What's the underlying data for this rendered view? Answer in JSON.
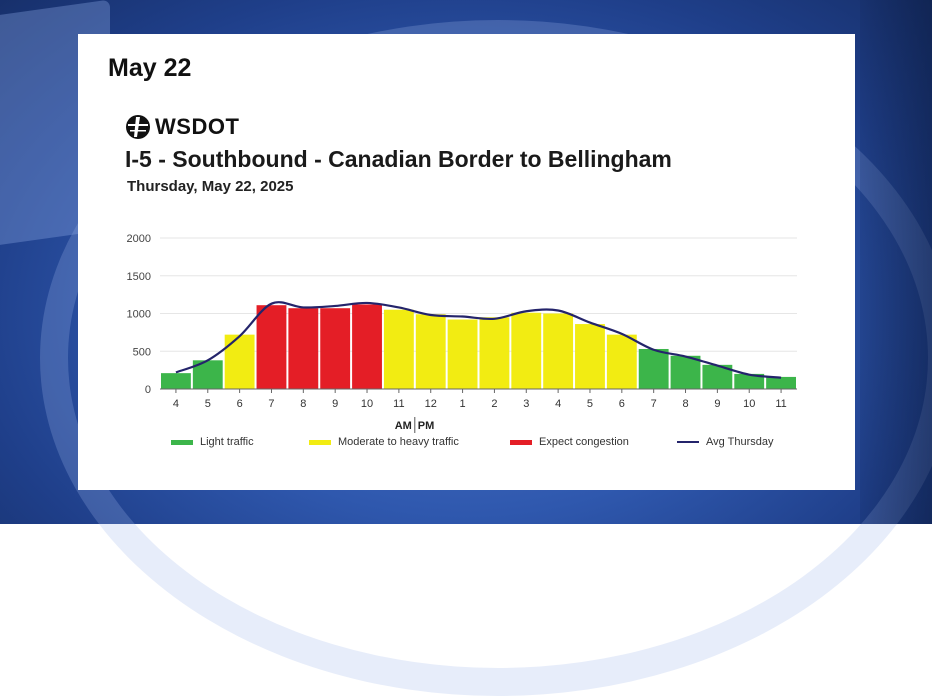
{
  "page": {
    "date_heading": "May 22",
    "logo_text": "WSDOT"
  },
  "colors": {
    "light": "#3cb54a",
    "moderate": "#f2ec12",
    "congestion": "#e41e26",
    "avg_line": "#24246b"
  },
  "chart_data": {
    "type": "bar",
    "title": "I-5 - Southbound - Canadian Border to Bellingham",
    "subtitle": "Thursday, May 22, 2025",
    "ylim": [
      0,
      2000
    ],
    "yticks": [
      "0",
      "500",
      "1000",
      "1500",
      "2000"
    ],
    "categories": [
      "4",
      "5",
      "6",
      "7",
      "8",
      "9",
      "10",
      "11",
      "12",
      "1",
      "2",
      "3",
      "4",
      "5",
      "6",
      "7",
      "8",
      "9",
      "10",
      "11"
    ],
    "axis_note": [
      "AM",
      "PM"
    ],
    "grid": true,
    "series": [
      {
        "values": [
          210,
          380,
          720,
          1110,
          1070,
          1070,
          1120,
          1050,
          990,
          920,
          950,
          1010,
          1000,
          860,
          720,
          530,
          440,
          320,
          200,
          160
        ],
        "levels": [
          "light",
          "light",
          "moderate",
          "congestion",
          "congestion",
          "congestion",
          "congestion",
          "moderate",
          "moderate",
          "moderate",
          "moderate",
          "moderate",
          "moderate",
          "moderate",
          "moderate",
          "light",
          "light",
          "light",
          "light",
          "light"
        ]
      },
      {
        "name": "Avg Thursday",
        "type": "line",
        "values": [
          220,
          380,
          700,
          1130,
          1080,
          1100,
          1140,
          1080,
          980,
          960,
          930,
          1030,
          1040,
          880,
          730,
          520,
          430,
          310,
          190,
          150
        ]
      }
    ],
    "legend": [
      {
        "label": "Light traffic",
        "key": "light"
      },
      {
        "label": "Moderate to heavy traffic",
        "key": "moderate"
      },
      {
        "label": "Expect congestion",
        "key": "congestion"
      },
      {
        "label": "Avg Thursday",
        "key": "avg_line"
      }
    ],
    "legend_position": "bottom"
  }
}
